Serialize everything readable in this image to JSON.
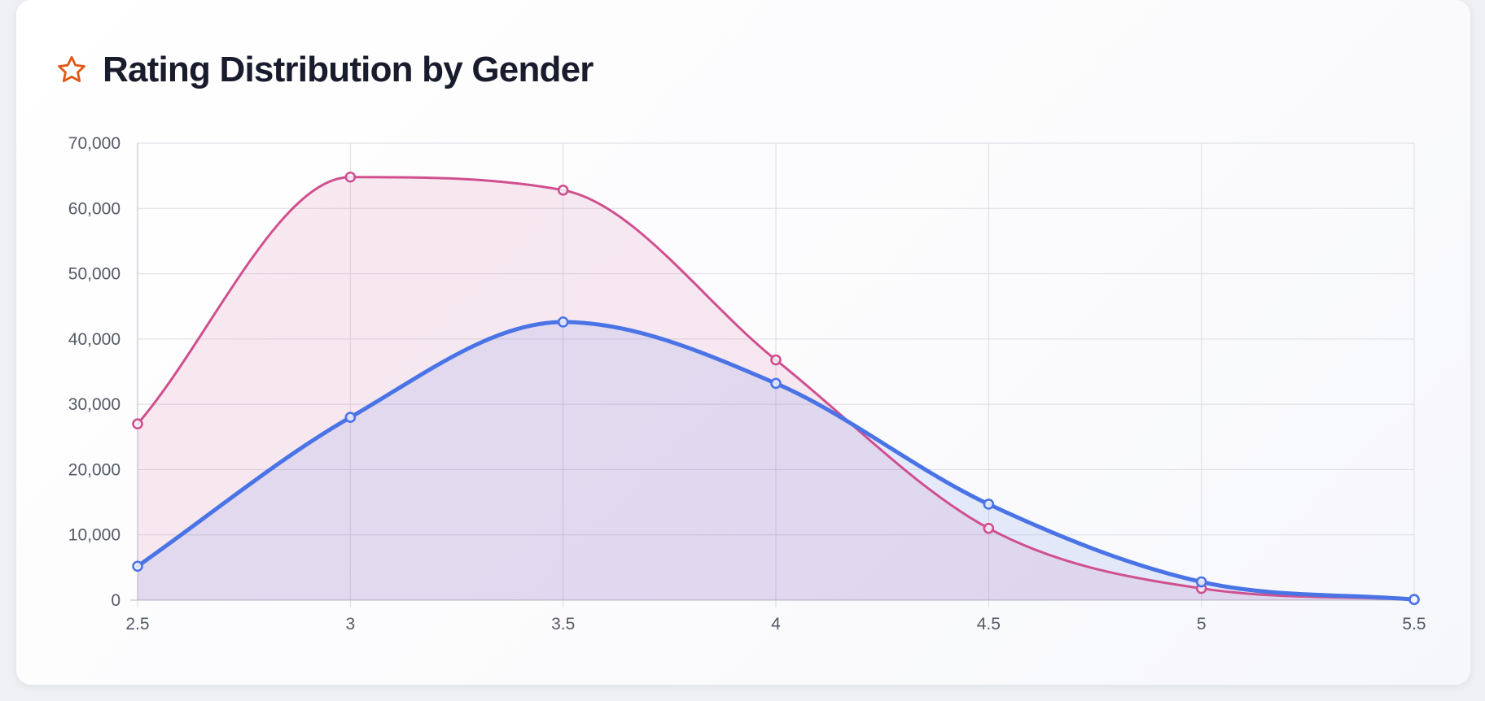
{
  "header": {
    "title": "Rating Distribution by Gender",
    "icon": "star-icon"
  },
  "colors": {
    "female": "#d0508f",
    "male": "#4a74e6",
    "accent": "#e05a16",
    "grid": "#dcdde3",
    "axis_text": "#555a66"
  },
  "chart_data": {
    "type": "area",
    "title": "Rating Distribution by Gender",
    "xlabel": "",
    "ylabel": "",
    "x": [
      2.5,
      3,
      3.5,
      4,
      4.5,
      5,
      5.5
    ],
    "x_tick_labels": [
      "2.5",
      "3",
      "3.5",
      "4",
      "4.5",
      "5",
      "5.5"
    ],
    "y_tick_labels": [
      "0",
      "10,000",
      "20,000",
      "30,000",
      "40,000",
      "50,000",
      "60,000",
      "70,000"
    ],
    "y_ticks": [
      0,
      10000,
      20000,
      30000,
      40000,
      50000,
      60000,
      70000
    ],
    "xlim": [
      2.5,
      5.5
    ],
    "ylim": [
      0,
      70000
    ],
    "grid": true,
    "legend": "none",
    "series": [
      {
        "values": [
          27000,
          64800,
          62800,
          36800,
          11000,
          1800,
          100
        ],
        "color": "#d0508f"
      },
      {
        "values": [
          5200,
          28000,
          42600,
          33200,
          14700,
          2800,
          100
        ],
        "color": "#4a74e6"
      }
    ]
  }
}
